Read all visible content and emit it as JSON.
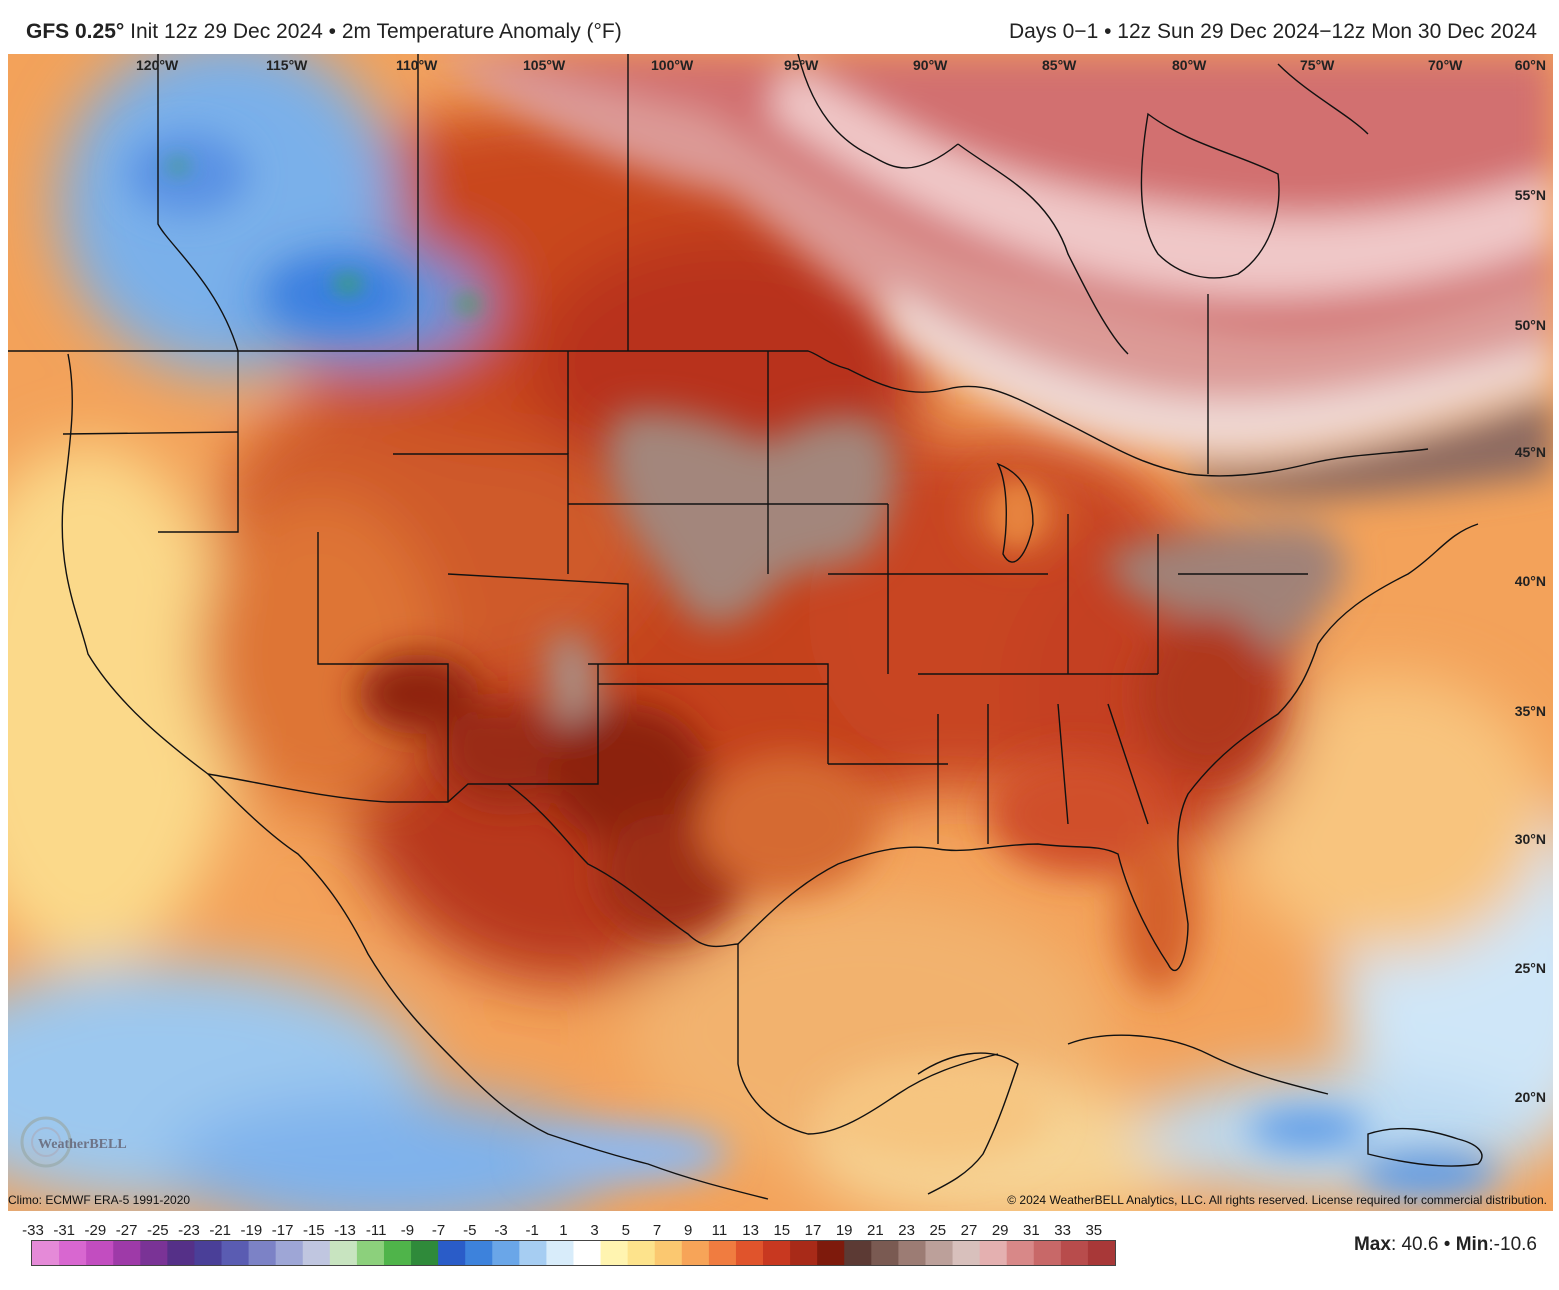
{
  "header": {
    "model": "GFS 0.25°",
    "init": "Init 12z 29 Dec 2024",
    "bullet1": "•",
    "product": "2m Temperature Anomaly (°F)",
    "valid": "Days 0−1 • 12z Sun 29 Dec 2024−12z Mon 30 Dec 2024"
  },
  "map": {
    "longitude_labels": [
      "120°W",
      "115°W",
      "110°W",
      "105°W",
      "100°W",
      "95°W",
      "90°W",
      "85°W",
      "80°W",
      "75°W",
      "70°W"
    ],
    "latitude_labels": [
      "60°N",
      "55°N",
      "50°N",
      "45°N",
      "40°N",
      "35°N",
      "30°N",
      "25°N",
      "20°N"
    ]
  },
  "footer": {
    "climo": "Climo: ECMWF ERA-5 1991-2020",
    "copyright": "© 2024 WeatherBELL Analytics, LLC. All rights reserved. License required for commercial distribution.",
    "logo_text": "WeatherBELL"
  },
  "colorbar": {
    "ticks": [
      "-33",
      "-31",
      "-29",
      "-27",
      "-25",
      "-23",
      "-21",
      "-19",
      "-17",
      "-15",
      "-13",
      "-11",
      "-9",
      "-7",
      "-5",
      "-3",
      "-1",
      "1",
      "3",
      "5",
      "7",
      "9",
      "11",
      "13",
      "15",
      "17",
      "19",
      "21",
      "23",
      "25",
      "27",
      "29",
      "31",
      "33",
      "35"
    ],
    "colors": [
      "#e58ad8",
      "#d867d0",
      "#c24dc0",
      "#9e3aa8",
      "#7a3396",
      "#553088",
      "#4a3f98",
      "#5a5cb2",
      "#7c82c6",
      "#9ea6d6",
      "#c0c6e0",
      "#c8e4c0",
      "#8cd07c",
      "#4fb44a",
      "#2f8a3a",
      "#2a5cc8",
      "#3d82dc",
      "#6aa6e8",
      "#a6cdf2",
      "#d8ecfa",
      "#ffffff",
      "#fff4b0",
      "#fde38c",
      "#fbc870",
      "#f7a458",
      "#f07c40",
      "#e0542c",
      "#c83820",
      "#a82a18",
      "#7e1a0c",
      "#5c3a34",
      "#7a5a52",
      "#9c7c74",
      "#bca09a",
      "#d8c0bc",
      "#e4b0b0",
      "#d88888",
      "#c86868",
      "#b84c4c",
      "#a83838"
    ]
  },
  "stats": {
    "max_label": "Max",
    "max_value": ": 40.6 •",
    "min_label": "Min",
    "min_value": ":-10.6"
  }
}
